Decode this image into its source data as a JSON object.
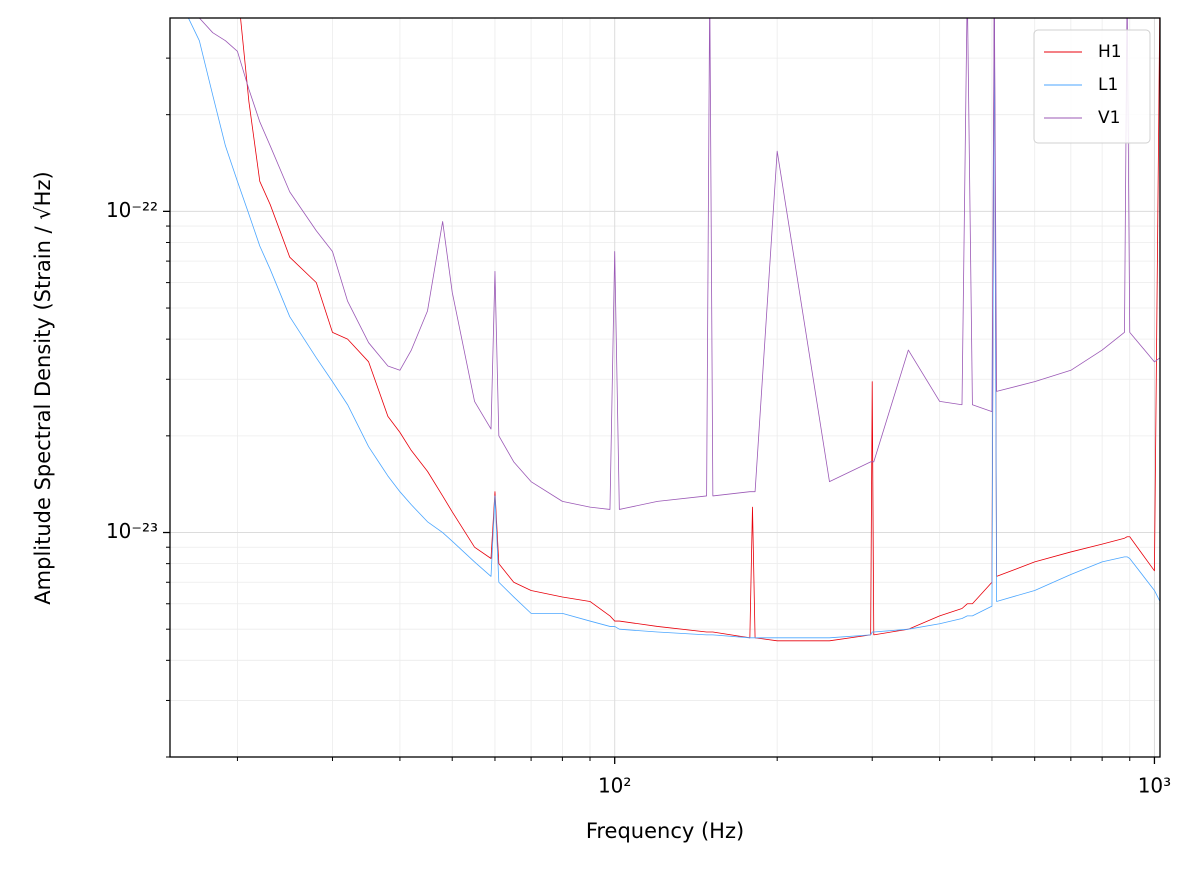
{
  "chart_data": {
    "type": "line",
    "xlabel": "Frequency (Hz)",
    "ylabel": "Amplitude Spectral Density (Strain / √Hz)",
    "log_x": true,
    "log_y": true,
    "grid": true,
    "legend": "upper right",
    "xlim": [
      15,
      1024
    ],
    "ylim": [
      2e-24,
      4e-22
    ],
    "xticks": [
      {
        "value": 100,
        "label": "10²"
      },
      {
        "value": 1000,
        "label": "10³"
      }
    ],
    "yticks": [
      {
        "value": 1e-23,
        "label": "10⁻²³"
      },
      {
        "value": 1e-22,
        "label": "10⁻²²"
      }
    ],
    "xticks_minor": [
      20,
      30,
      40,
      50,
      60,
      70,
      80,
      90,
      200,
      300,
      400,
      500,
      600,
      700,
      800,
      900
    ],
    "yticks_minor": [
      2e-24,
      3e-24,
      4e-24,
      5e-24,
      6e-24,
      7e-24,
      8e-24,
      9e-24,
      2e-23,
      3e-23,
      4e-23,
      5e-23,
      6e-23,
      7e-23,
      8e-23,
      9e-23,
      2e-22,
      3e-22
    ],
    "x": [
      15,
      16,
      17,
      18,
      19,
      20,
      21,
      22,
      23,
      25,
      28,
      30,
      32,
      35,
      38,
      40,
      42,
      45,
      48,
      50,
      55,
      59,
      60,
      61,
      65,
      70,
      80,
      90,
      98,
      100,
      102,
      120,
      148,
      150,
      152,
      178,
      180,
      182,
      200,
      250,
      298,
      300,
      302,
      350,
      400,
      440,
      450,
      460,
      500,
      505,
      510,
      600,
      700,
      800,
      880,
      890,
      900,
      1000,
      1024
    ],
    "series": [
      {
        "name": "H1",
        "color": "#e8000b",
        "values": [
          5e-22,
          5e-22,
          5e-22,
          5e-22,
          5e-22,
          5e-22,
          2.2e-22,
          1.24e-22,
          1.05e-22,
          7.2e-23,
          6e-23,
          4.2e-23,
          4e-23,
          3.4e-23,
          2.3e-23,
          2.05e-23,
          1.8e-23,
          1.55e-23,
          1.3e-23,
          1.16e-23,
          9e-24,
          8.3e-24,
          1.34e-23,
          8e-24,
          7e-24,
          6.6e-24,
          6.3e-24,
          6.1e-24,
          5.5e-24,
          5.3e-24,
          5.3e-24,
          5.1e-24,
          4.9e-24,
          4.9e-24,
          4.9e-24,
          4.7e-24,
          1.2e-23,
          4.7e-24,
          4.6e-24,
          4.6e-24,
          4.8e-24,
          2.95e-23,
          4.8e-24,
          5e-24,
          5.5e-24,
          5.8e-24,
          6e-24,
          6e-24,
          7e-24,
          5e-22,
          7.3e-24,
          8.1e-24,
          8.7e-24,
          9.2e-24,
          9.6e-24,
          9.7e-24,
          9.7e-24,
          7.6e-24,
          5e-22
        ]
      },
      {
        "name": "L1",
        "color": "#4ba6ff",
        "values": [
          4.5e-22,
          4.2e-22,
          3.4e-22,
          2.3e-22,
          1.6e-22,
          1.24e-22,
          9.8e-23,
          7.8e-23,
          6.6e-23,
          4.7e-23,
          3.5e-23,
          2.95e-23,
          2.5e-23,
          1.85e-23,
          1.5e-23,
          1.34e-23,
          1.22e-23,
          1.08e-23,
          1e-23,
          9.4e-24,
          8.1e-24,
          7.3e-24,
          1.3e-23,
          7e-24,
          6.3e-24,
          5.6e-24,
          5.6e-24,
          5.3e-24,
          5.1e-24,
          5.1e-24,
          5e-24,
          4.9e-24,
          4.8e-24,
          4.8e-24,
          4.8e-24,
          4.7e-24,
          4.7e-24,
          4.7e-24,
          4.7e-24,
          4.7e-24,
          4.8e-24,
          4.9e-24,
          4.9e-24,
          5e-24,
          5.2e-24,
          5.4e-24,
          5.5e-24,
          5.5e-24,
          5.9e-24,
          4.5e-22,
          6.1e-24,
          6.6e-24,
          7.4e-24,
          8.1e-24,
          8.4e-24,
          8.4e-24,
          8.3e-24,
          6.6e-24,
          6.1e-24
        ]
      },
      {
        "name": "V1",
        "color": "#9b59b6",
        "values": [
          5e-22,
          5e-22,
          4e-22,
          3.6e-22,
          3.4e-22,
          3.15e-22,
          2.4e-22,
          1.9e-22,
          1.6e-22,
          1.15e-22,
          8.7e-23,
          7.5e-23,
          5.25e-23,
          3.9e-23,
          3.3e-23,
          3.2e-23,
          3.7e-23,
          4.9e-23,
          9.3e-23,
          5.6e-23,
          2.56e-23,
          2.1e-23,
          6.5e-23,
          2e-23,
          1.66e-23,
          1.44e-23,
          1.25e-23,
          1.2e-23,
          1.18e-23,
          7.5e-23,
          1.18e-23,
          1.25e-23,
          1.3e-23,
          5e-22,
          1.3e-23,
          1.34e-23,
          1.34e-23,
          1.34e-23,
          1.54e-22,
          1.44e-23,
          1.66e-23,
          1.66e-23,
          1.66e-23,
          3.7e-23,
          2.56e-23,
          2.5e-23,
          5e-22,
          2.5e-23,
          2.38e-23,
          5e-22,
          2.75e-23,
          2.95e-23,
          3.2e-23,
          3.7e-23,
          4.2e-23,
          5e-22,
          4.2e-23,
          3.4e-23,
          3.5e-23
        ]
      }
    ]
  }
}
